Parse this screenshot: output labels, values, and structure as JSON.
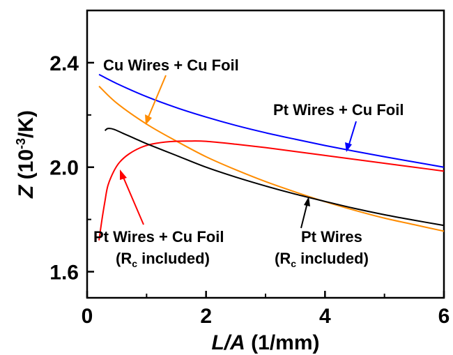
{
  "chart_data": {
    "type": "line",
    "xlabel": {
      "italic": "L/A",
      "plain": " (1/mm)"
    },
    "ylabel": {
      "italic": "Z",
      "plain_pre": " (10",
      "sup": "-3",
      "plain_post": "/K)"
    },
    "xlim": [
      0,
      6
    ],
    "ylim": [
      1.5,
      2.6
    ],
    "xticks": [
      "0",
      "2",
      "4",
      "6"
    ],
    "xtick_values": [
      0,
      2,
      4,
      6
    ],
    "yticks": [
      "1.6",
      "2.0",
      "2.4"
    ],
    "ytick_values": [
      1.6,
      2.0,
      2.4
    ],
    "grid": false,
    "series": [
      {
        "key": "pt-cu",
        "color": "#0000ff",
        "x": [
          0.2,
          0.5,
          1.0,
          1.5,
          2.0,
          2.5,
          3.0,
          3.5,
          4.0,
          4.5,
          5.0,
          5.5,
          6.0
        ],
        "y": [
          2.355,
          2.32,
          2.27,
          2.228,
          2.192,
          2.16,
          2.132,
          2.107,
          2.083,
          2.061,
          2.04,
          2.02,
          2.0
        ]
      },
      {
        "key": "cu-cu",
        "color": "#ff8c00",
        "x": [
          0.2,
          0.5,
          1.0,
          1.5,
          2.0,
          2.5,
          3.0,
          3.5,
          4.0,
          4.5,
          5.0,
          5.5,
          6.0
        ],
        "y": [
          2.31,
          2.245,
          2.165,
          2.1,
          2.04,
          1.99,
          1.945,
          1.905,
          1.868,
          1.835,
          1.805,
          1.78,
          1.755
        ]
      },
      {
        "key": "pt-cu-rc",
        "color": "#ff0000",
        "x": [
          0.2,
          0.25,
          0.3,
          0.35,
          0.45,
          0.55,
          0.7,
          0.9,
          1.1,
          1.4,
          1.7,
          2.0,
          2.5,
          3.0,
          3.5,
          4.0,
          4.5,
          5.0,
          5.5,
          6.0
        ],
        "y": [
          1.72,
          1.8,
          1.87,
          1.93,
          1.985,
          2.02,
          2.05,
          2.075,
          2.089,
          2.098,
          2.1,
          2.099,
          2.088,
          2.075,
          2.06,
          2.045,
          2.03,
          2.015,
          2.0,
          1.985
        ]
      },
      {
        "key": "pt-rc",
        "color": "#000000",
        "x": [
          0.3,
          0.35,
          0.45,
          0.6,
          0.8,
          1.0,
          1.5,
          2.0,
          2.5,
          3.0,
          3.5,
          4.0,
          4.5,
          5.0,
          5.5,
          6.0
        ],
        "y": [
          2.14,
          2.148,
          2.145,
          2.13,
          2.11,
          2.09,
          2.045,
          2.0,
          1.962,
          1.928,
          1.897,
          1.869,
          1.842,
          1.818,
          1.797,
          1.777
        ]
      }
    ],
    "annotations": [
      {
        "key": "cu-cu",
        "lines": [
          {
            "text": "Cu Wires + Cu Foil"
          }
        ]
      },
      {
        "key": "pt-cu",
        "lines": [
          {
            "text": "Pt Wires + Cu Foil"
          }
        ]
      },
      {
        "key": "pt-cu-rc",
        "lines": [
          {
            "text": "Pt Wires + Cu Foil"
          },
          {
            "pre": "(R",
            "sub": "c",
            "post": " included)"
          }
        ]
      },
      {
        "key": "pt-rc",
        "lines": [
          {
            "text": "Pt Wires"
          },
          {
            "pre": "(R",
            "sub": "c",
            "post": " included)"
          }
        ]
      }
    ]
  }
}
